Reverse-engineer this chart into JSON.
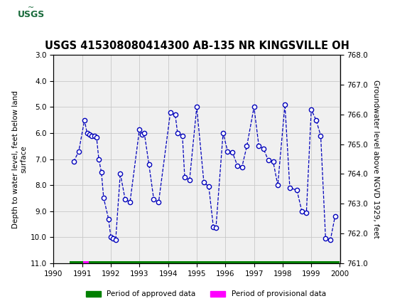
{
  "title": "USGS 415308080414300 AB-135 NR KINGSVILLE OH",
  "ylabel_left": "Depth to water level, feet below land\nsurface",
  "ylabel_right": "Groundwater level above NGVD 1929, feet",
  "ylim_left": [
    3.0,
    11.0
  ],
  "ylim_right": [
    761.0,
    768.0
  ],
  "xlim": [
    1990,
    2000
  ],
  "xticks": [
    1990,
    1991,
    1992,
    1993,
    1994,
    1995,
    1996,
    1997,
    1998,
    1999,
    2000
  ],
  "yticks_left": [
    3.0,
    4.0,
    5.0,
    6.0,
    7.0,
    8.0,
    9.0,
    10.0,
    11.0
  ],
  "yticks_right": [
    761.0,
    762.0,
    763.0,
    764.0,
    765.0,
    766.0,
    767.0,
    768.0
  ],
  "data_x": [
    1990.7,
    1990.88,
    1991.08,
    1991.17,
    1991.25,
    1991.33,
    1991.42,
    1991.5,
    1991.58,
    1991.67,
    1991.75,
    1991.92,
    1992.0,
    1992.08,
    1992.17,
    1992.33,
    1992.5,
    1992.67,
    1993.0,
    1993.08,
    1993.17,
    1993.33,
    1993.5,
    1993.67,
    1994.08,
    1994.25,
    1994.33,
    1994.5,
    1994.58,
    1994.75,
    1995.0,
    1995.25,
    1995.42,
    1995.58,
    1995.67,
    1995.92,
    1996.08,
    1996.25,
    1996.42,
    1996.58,
    1996.75,
    1997.0,
    1997.17,
    1997.33,
    1997.5,
    1997.67,
    1997.83,
    1998.08,
    1998.25,
    1998.5,
    1998.67,
    1998.83,
    1999.0,
    1999.17,
    1999.33,
    1999.5,
    1999.67,
    1999.83
  ],
  "data_y": [
    7.1,
    6.7,
    5.5,
    6.0,
    6.05,
    6.1,
    6.1,
    6.15,
    7.0,
    7.5,
    8.5,
    9.3,
    10.0,
    10.05,
    10.1,
    7.55,
    8.55,
    8.65,
    5.85,
    6.05,
    6.0,
    7.2,
    8.55,
    8.65,
    5.2,
    5.3,
    6.0,
    6.1,
    7.7,
    7.8,
    5.0,
    7.9,
    8.05,
    9.6,
    9.65,
    6.0,
    6.7,
    6.75,
    7.25,
    7.3,
    6.5,
    5.0,
    6.5,
    6.6,
    7.05,
    7.1,
    8.0,
    4.9,
    8.1,
    8.2,
    9.0,
    9.05,
    5.1,
    5.5,
    6.1,
    10.05,
    10.1,
    9.2
  ],
  "line_color": "#0000bb",
  "marker_facecolor": "#ffffff",
  "marker_edgecolor": "#0000bb",
  "background_color": "#ffffff",
  "plot_bg_color": "#f0f0f0",
  "header_bg_color": "#1a6b3c",
  "approved_color": "#008000",
  "provisional_color": "#ff00ff",
  "approved_seg1_start": 1990.55,
  "approved_seg1_end": 1991.02,
  "provisional_seg_start": 1991.02,
  "provisional_seg_end": 1991.22,
  "approved_seg2_start": 1991.22,
  "approved_seg2_end": 2000.0
}
